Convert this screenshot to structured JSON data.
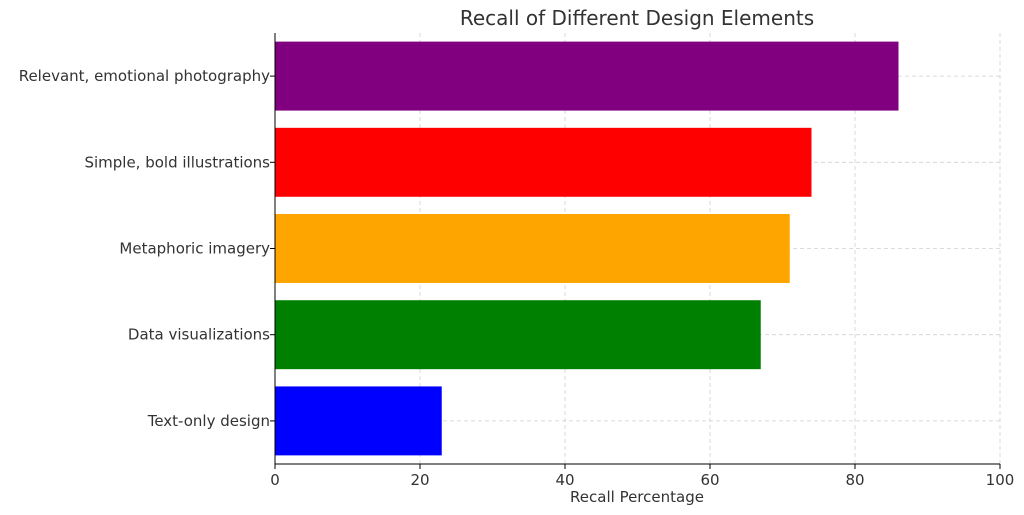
{
  "chart_data": {
    "type": "bar",
    "orientation": "horizontal",
    "title": "Recall of Different Design Elements",
    "xlabel": "Recall Percentage",
    "ylabel": "",
    "xlim": [
      0,
      100
    ],
    "xticks": [
      0,
      20,
      40,
      60,
      80,
      100
    ],
    "grid": true,
    "categories": [
      "Relevant, emotional photography",
      "Simple, bold illustrations",
      "Metaphoric imagery",
      "Data visualizations",
      "Text-only design"
    ],
    "values": [
      86,
      74,
      71,
      67,
      23
    ],
    "colors": [
      "#800080",
      "#ff0000",
      "#ffa500",
      "#008000",
      "#0000ff"
    ]
  }
}
